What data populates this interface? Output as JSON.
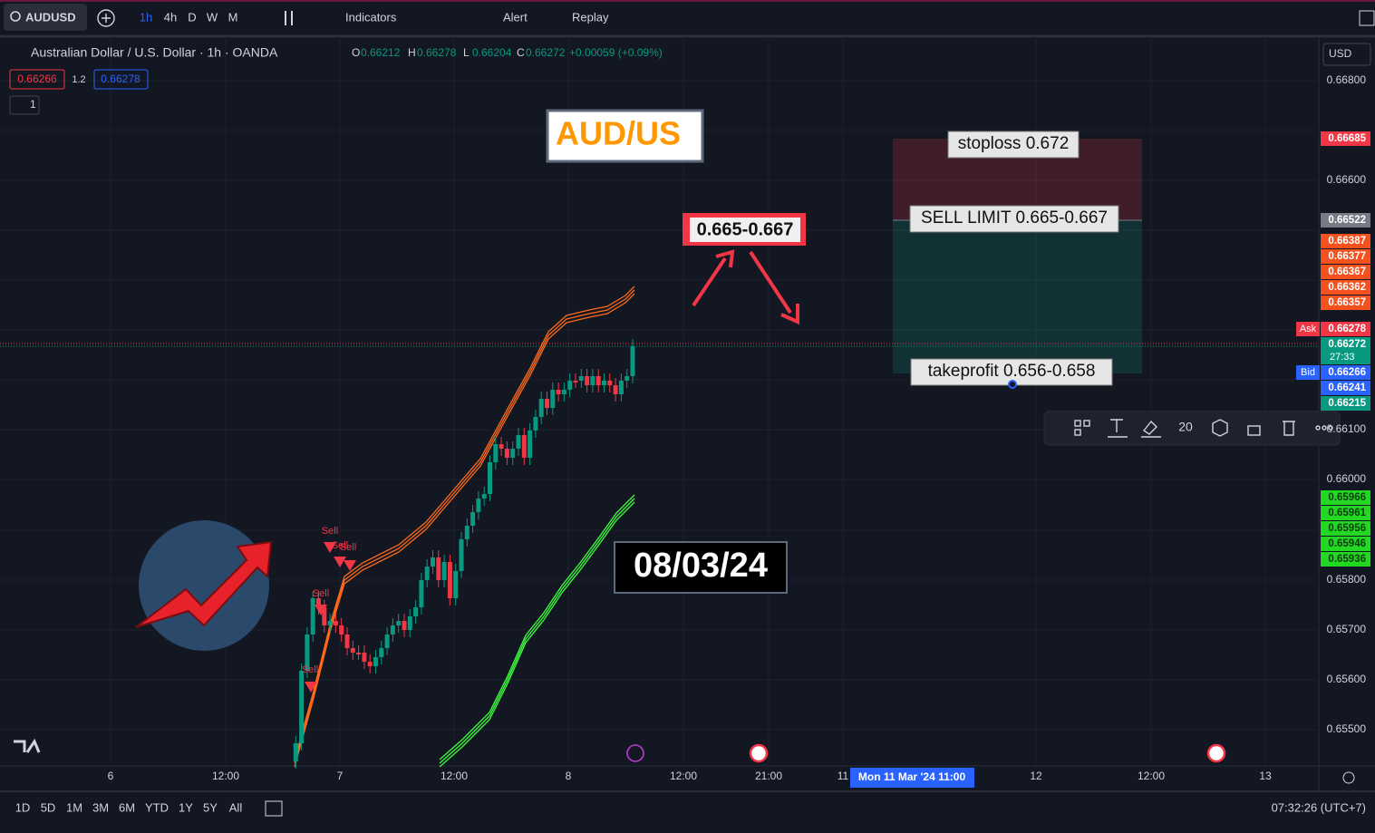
{
  "toolbar": {
    "symbol": "AUDUSD",
    "intervals": [
      "1h",
      "4h",
      "D",
      "W",
      "M"
    ],
    "indicators": "Indicators",
    "alert": "Alert",
    "replay": "Replay"
  },
  "legend": {
    "title": "Australian Dollar / U.S. Dollar · 1h · OANDA",
    "ohlc": [
      {
        "key": "O",
        "value": "0.66212"
      },
      {
        "key": "H",
        "value": "0.66278"
      },
      {
        "key": "L",
        "value": "0.66204"
      },
      {
        "key": "C",
        "value": "0.66272"
      }
    ],
    "change": "+0.00059 (+0.09%)",
    "sell": "0.66266",
    "spread": "1.2",
    "buy": "0.66278",
    "indicators_count": "1"
  },
  "currency": "USD",
  "price_axis": [
    "0.66800",
    "0.66600",
    "0.66100",
    "0.66000",
    "0.65800",
    "0.65700",
    "0.65600",
    "0.65500"
  ],
  "price_badges": {
    "stoploss": "0.66685",
    "entry": "0.66522",
    "orange": [
      "0.66387",
      "0.66377",
      "0.66367",
      "0.66362",
      "0.66357"
    ],
    "ask_label": "Ask",
    "ask": "0.66278",
    "last": "0.66272",
    "countdown": "27:33",
    "bid_label": "Bid",
    "bid": "0.66266",
    "blue": "0.66241",
    "teal": "0.66215",
    "green": [
      "0.65966",
      "0.65961",
      "0.65956",
      "0.65946",
      "0.65936"
    ]
  },
  "time_axis": [
    "6",
    "12:00",
    "7",
    "12:00",
    "8",
    "12:00",
    "21:00",
    "11",
    "12",
    "12:00",
    "13"
  ],
  "crosshair_time": "Mon 11 Mar '24   11:00",
  "annotations": {
    "title": "AUD/US",
    "range": "0.665-0.667",
    "date": "08/03/24",
    "stoploss": "stoploss 0.672",
    "sell_limit": "SELL LIMIT 0.665-0.667",
    "takeprofit": "takeprofit 0.656-0.658"
  },
  "signals": [
    "Sell",
    "Sell",
    "Sell",
    "Sell",
    "Sell"
  ],
  "drawing_toolbar": {
    "width": "20"
  },
  "ranges": [
    "1D",
    "5D",
    "1M",
    "3M",
    "6M",
    "YTD",
    "1Y",
    "5Y",
    "All"
  ],
  "clock": "07:32:26 (UTC+7)"
}
